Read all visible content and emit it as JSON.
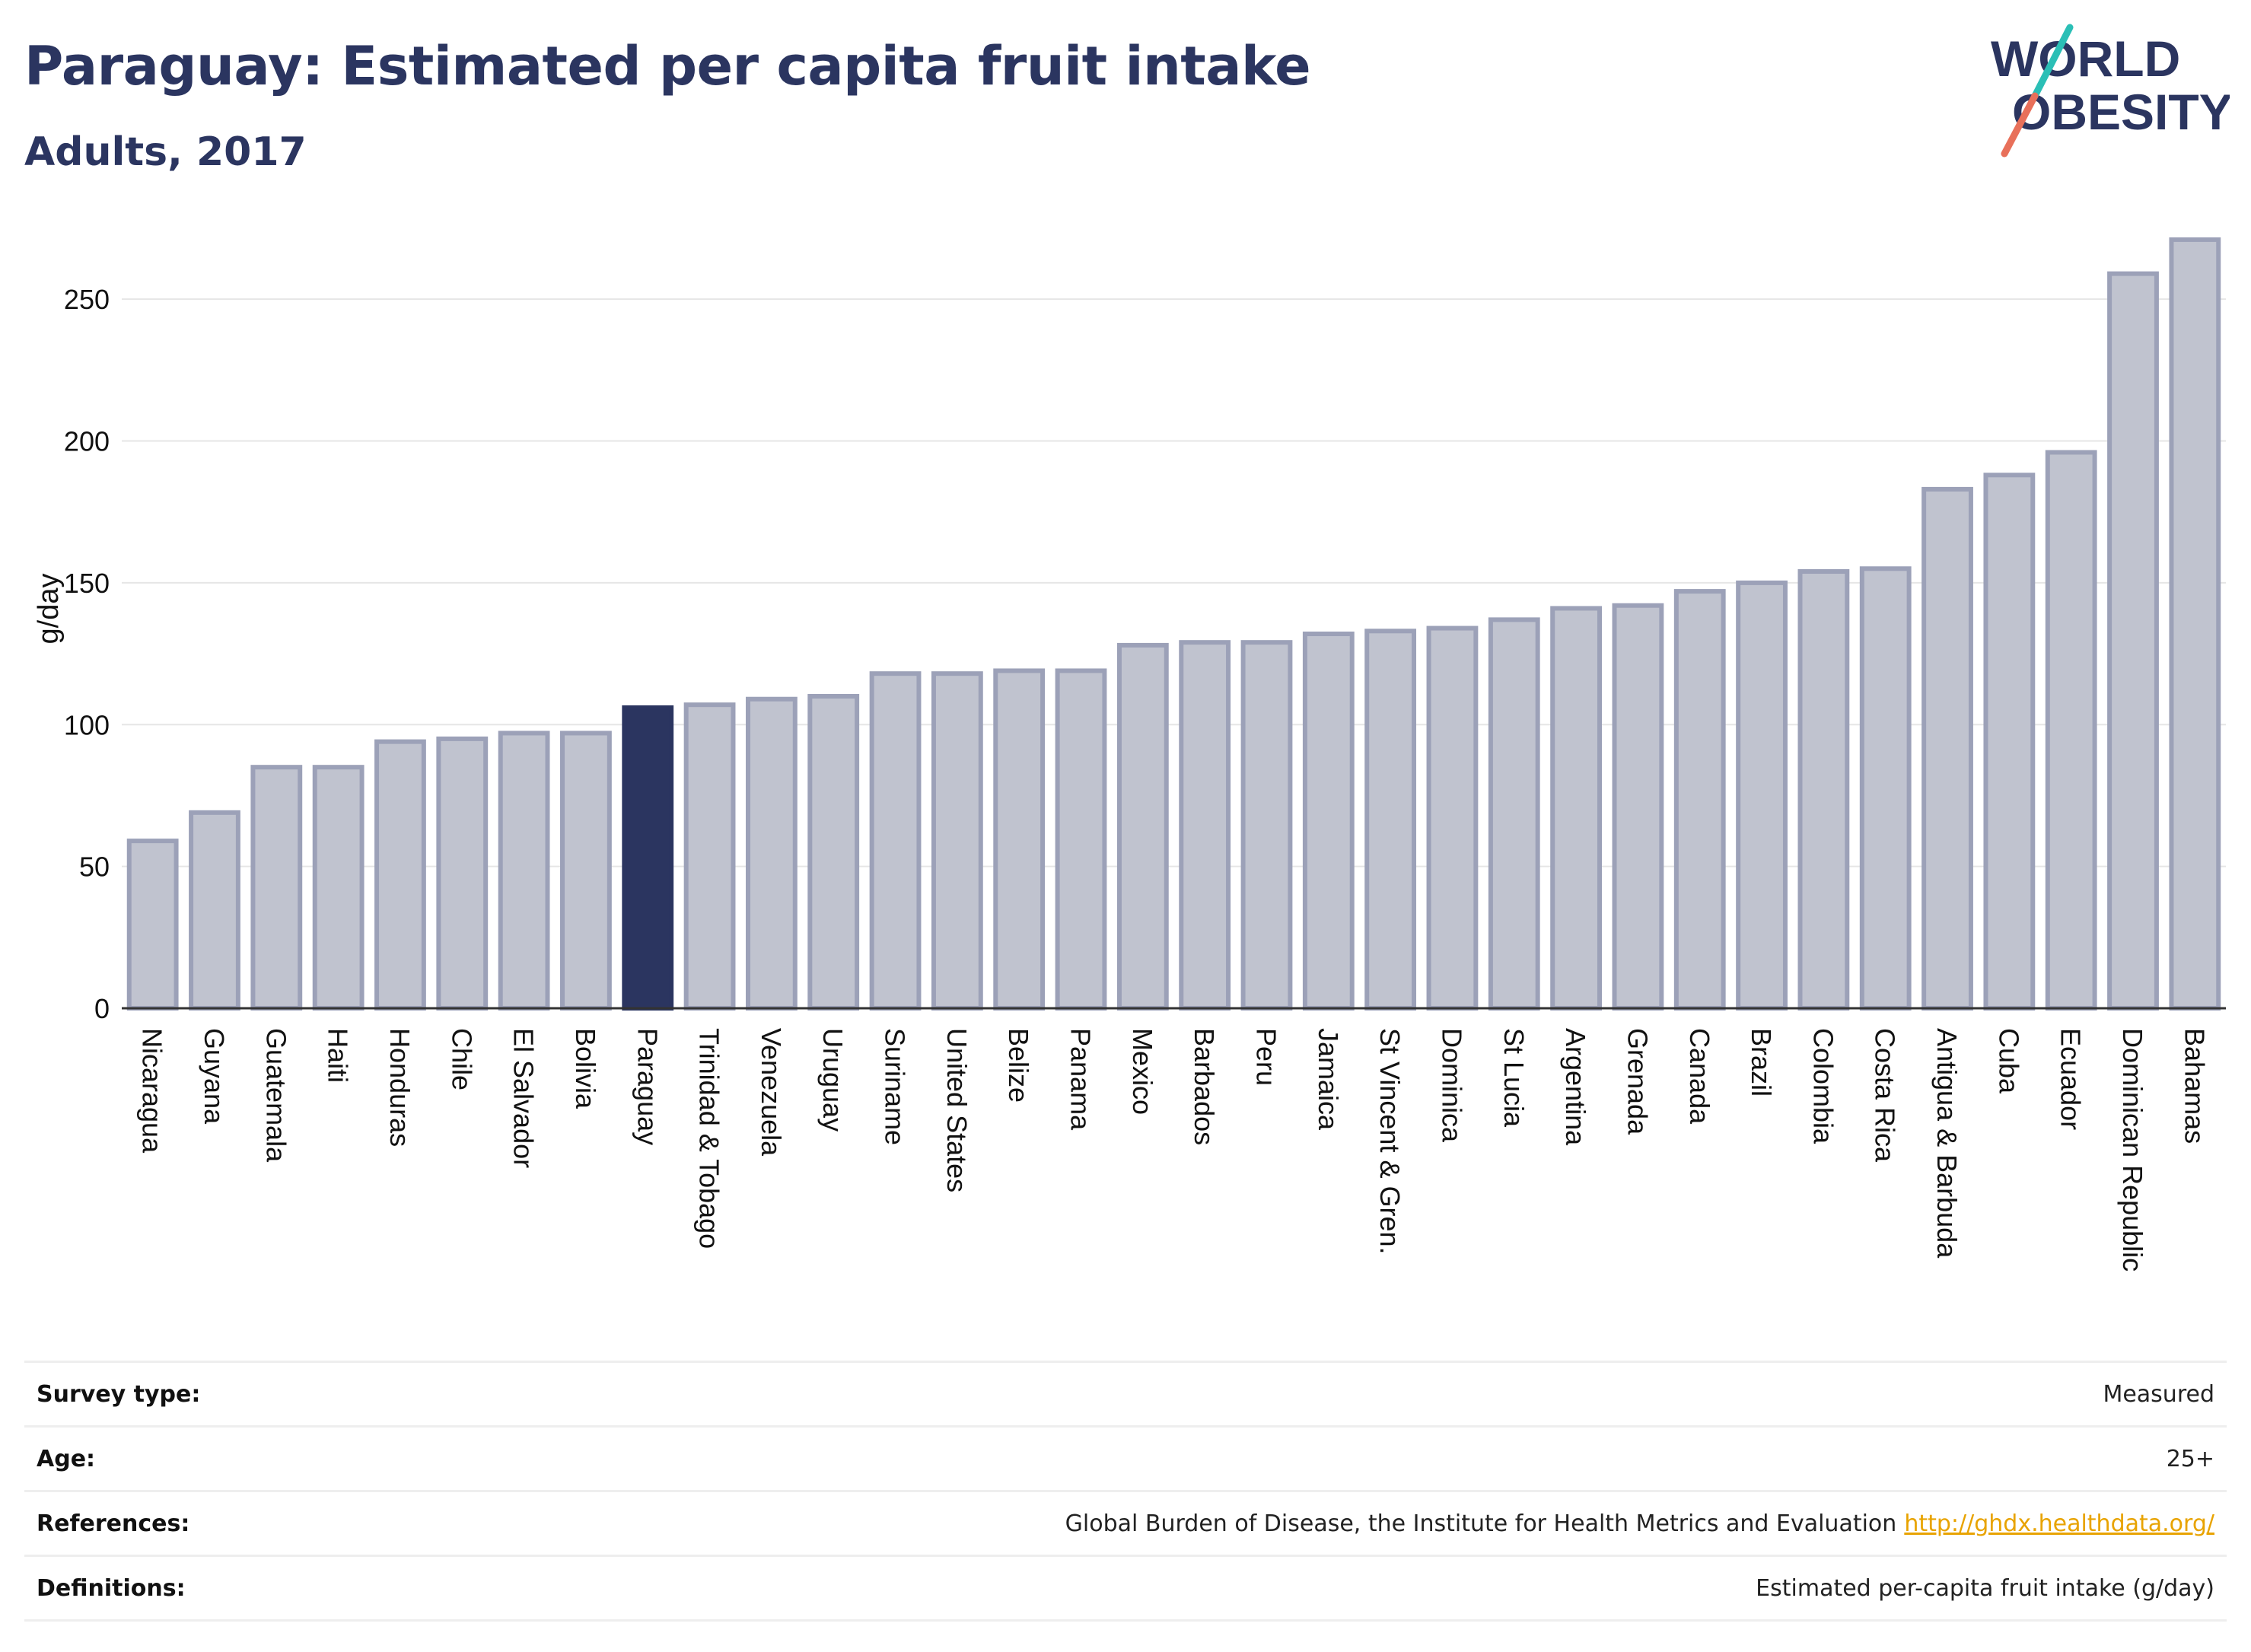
{
  "header": {
    "title": "Paraguay: Estimated per capita fruit intake",
    "subtitle": "Adults, 2017"
  },
  "logo": {
    "line1": "WORLD",
    "line2": "OBESITY",
    "colors": {
      "text": "#2b3560",
      "accent_teal": "#2bbfb6",
      "accent_coral": "#e8705a"
    }
  },
  "colors": {
    "bar": "#c0c3cf",
    "bar_stroke": "#9ca1b8",
    "highlight": "#2b3560",
    "gridline": "#e6e6e6",
    "link": "#e8a300"
  },
  "chart_data": {
    "type": "bar",
    "title": "Paraguay: Estimated per capita fruit intake",
    "subtitle": "Adults, 2017",
    "xlabel": "",
    "ylabel": "g/day",
    "ylim": [
      0,
      275
    ],
    "yticks": [
      0,
      50,
      100,
      150,
      200,
      250
    ],
    "grid": true,
    "highlight": "Paraguay",
    "categories": [
      "Nicaragua",
      "Guyana",
      "Guatemala",
      "Haiti",
      "Honduras",
      "Chile",
      "El Salvador",
      "Bolivia",
      "Paraguay",
      "Trinidad & Tobago",
      "Venezuela",
      "Uruguay",
      "Suriname",
      "United States",
      "Belize",
      "Panama",
      "Mexico",
      "Barbados",
      "Peru",
      "Jamaica",
      "St Vincent & Gren.",
      "Dominica",
      "St Lucia",
      "Argentina",
      "Grenada",
      "Canada",
      "Brazil",
      "Colombia",
      "Costa Rica",
      "Antigua & Barbuda",
      "Cuba",
      "Ecuador",
      "Dominican Republic",
      "Bahamas"
    ],
    "values": [
      59,
      69,
      85,
      85,
      94,
      95,
      97,
      97,
      106,
      107,
      109,
      110,
      118,
      118,
      119,
      119,
      128,
      129,
      129,
      132,
      133,
      134,
      137,
      141,
      142,
      147,
      150,
      154,
      155,
      183,
      188,
      196,
      259,
      271
    ]
  },
  "info": [
    {
      "label": "Survey type:",
      "value": "Measured"
    },
    {
      "label": "Age:",
      "value": "25+"
    },
    {
      "label": "References:",
      "value": "Global Burden of Disease, the Institute for Health Metrics and Evaluation",
      "link": "http://ghdx.healthdata.org/"
    },
    {
      "label": "Definitions:",
      "value": "Estimated per-capita fruit intake (g/day)"
    }
  ]
}
